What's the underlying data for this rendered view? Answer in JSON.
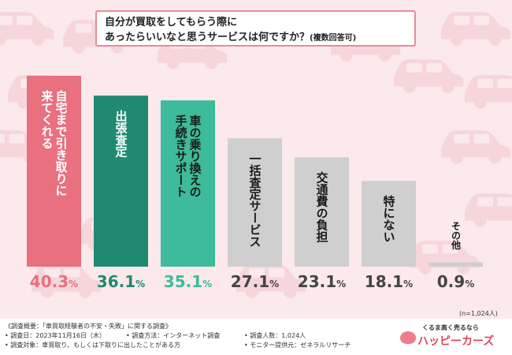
{
  "title": {
    "line1": "自分が買取をしてもらう際に",
    "line2": "あったらいいなと思うサービスは何ですか？",
    "note": "(複数回答可)"
  },
  "chart_data": {
    "type": "bar",
    "categories": [
      "自宅まで引き取りに来てくれる",
      "出張査定",
      "車の乗り換えの手続きサポート",
      "一括査定サービス",
      "交通費の負担",
      "特にない",
      "その他"
    ],
    "category_lines": [
      [
        "自宅まで引き取りに",
        "来てくれる"
      ],
      [
        "出張査定"
      ],
      [
        "車の乗り換えの",
        "手続きサポート"
      ],
      [
        "一括査定サービス"
      ],
      [
        "交通費の負担"
      ],
      [
        "特にない"
      ],
      [
        "その他"
      ]
    ],
    "values": [
      40.3,
      36.1,
      35.1,
      27.1,
      23.1,
      18.1,
      0.9
    ],
    "unit": "%",
    "bar_colors": [
      "#e8707f",
      "#1f8a70",
      "#3dbb9a",
      "#cfcfcf",
      "#cfcfcf",
      "#cfcfcf",
      "#cfcfcf"
    ],
    "label_colors": [
      "#e8707f",
      "#1f8a70",
      "#3dbb9a",
      "#444444",
      "#444444",
      "#444444",
      "#444444"
    ],
    "text_colors": [
      "#ffffff",
      "#ffffff",
      "#1a1a1a",
      "#1a1a1a",
      "#1a1a1a",
      "#1a1a1a",
      "#1a1a1a"
    ],
    "ylim": [
      0,
      40.3
    ],
    "grid": false
  },
  "sample_note": "(n=1,024人)",
  "footer": {
    "overview": "《調査概要：「車買取経験者の不安・失敗」に関する調査》",
    "date": "• 調査日：2023年11月16日（木）",
    "method": "• 調査方法：インターネット調査",
    "count": "• 調査人数：1,024人",
    "target": "• 調査対象：車買取り、もしくは下取りに出したことがある方",
    "provider": "• モニター提供元：ゼネラルリサーチ"
  },
  "logo": {
    "tagline": "くるま高く売るなら",
    "name": "ハッピーカーズ"
  }
}
